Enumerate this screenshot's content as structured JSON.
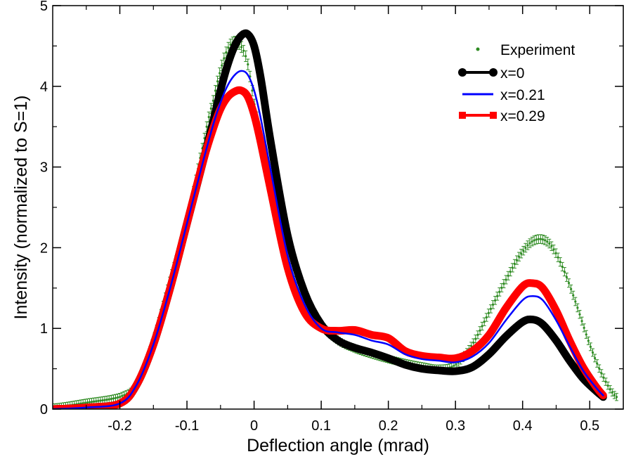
{
  "chart_data": {
    "type": "line",
    "title": "",
    "xlabel": "Deflection angle (mrad)",
    "ylabel": "Intensity (normalized to S=1)",
    "xlim": [
      -0.3,
      0.55
    ],
    "ylim": [
      0,
      5
    ],
    "x_ticks": [
      -0.2,
      -0.1,
      0,
      0.1,
      0.2,
      0.3,
      0.4,
      0.5
    ],
    "x_tick_labels": [
      "-0.2",
      "-0.1",
      "0",
      "0.1",
      "0.2",
      "0.3",
      "0.4",
      "0.5"
    ],
    "y_ticks": [
      0,
      1,
      2,
      3,
      4,
      5
    ],
    "y_tick_labels": [
      "0",
      "1",
      "2",
      "3",
      "4",
      "5"
    ],
    "grid": false,
    "legend_position": "top-right",
    "series": [
      {
        "name": "Experiment",
        "color": "#2e8b22",
        "style": "points-with-error-bars",
        "x": [
          -0.3,
          -0.25,
          -0.2,
          -0.175,
          -0.15,
          -0.125,
          -0.1,
          -0.075,
          -0.06,
          -0.05,
          -0.04,
          -0.03,
          -0.02,
          -0.01,
          0.0,
          0.01,
          0.025,
          0.05,
          0.075,
          0.1,
          0.125,
          0.15,
          0.175,
          0.2,
          0.225,
          0.25,
          0.275,
          0.3,
          0.325,
          0.35,
          0.375,
          0.4,
          0.42,
          0.44,
          0.46,
          0.48,
          0.5,
          0.52,
          0.54
        ],
        "y": [
          0.02,
          0.08,
          0.15,
          0.3,
          0.85,
          1.6,
          2.3,
          3.3,
          3.85,
          4.2,
          4.45,
          4.55,
          4.5,
          4.3,
          3.8,
          3.3,
          2.7,
          2.0,
          1.4,
          1.05,
          0.85,
          0.75,
          0.68,
          0.62,
          0.57,
          0.53,
          0.5,
          0.55,
          0.8,
          1.2,
          1.6,
          1.95,
          2.1,
          2.05,
          1.75,
          1.3,
          0.8,
          0.4,
          0.15
        ]
      },
      {
        "name": "x=0",
        "color": "#000000",
        "style": "thick-line-circles",
        "x": [
          -0.3,
          -0.25,
          -0.2,
          -0.175,
          -0.15,
          -0.125,
          -0.1,
          -0.075,
          -0.06,
          -0.05,
          -0.04,
          -0.03,
          -0.02,
          -0.01,
          0.0,
          0.01,
          0.025,
          0.05,
          0.075,
          0.1,
          0.125,
          0.15,
          0.175,
          0.2,
          0.225,
          0.25,
          0.275,
          0.3,
          0.325,
          0.35,
          0.375,
          0.4,
          0.415,
          0.43,
          0.45,
          0.47,
          0.49,
          0.51,
          0.52
        ],
        "y": [
          0.0,
          0.02,
          0.07,
          0.3,
          0.8,
          1.5,
          2.3,
          3.1,
          3.6,
          3.95,
          4.25,
          4.48,
          4.62,
          4.65,
          4.5,
          4.1,
          3.3,
          2.15,
          1.45,
          1.05,
          0.85,
          0.76,
          0.7,
          0.63,
          0.55,
          0.5,
          0.48,
          0.47,
          0.52,
          0.68,
          0.9,
          1.08,
          1.11,
          1.05,
          0.85,
          0.6,
          0.38,
          0.22,
          0.15
        ]
      },
      {
        "name": "x=0.21",
        "color": "#0000ff",
        "style": "thin-line",
        "x": [
          -0.3,
          -0.25,
          -0.2,
          -0.175,
          -0.15,
          -0.125,
          -0.1,
          -0.075,
          -0.06,
          -0.05,
          -0.04,
          -0.03,
          -0.02,
          -0.01,
          0.0,
          0.01,
          0.025,
          0.05,
          0.075,
          0.1,
          0.125,
          0.15,
          0.175,
          0.2,
          0.225,
          0.25,
          0.275,
          0.3,
          0.325,
          0.35,
          0.375,
          0.4,
          0.415,
          0.43,
          0.45,
          0.47,
          0.49,
          0.51,
          0.52
        ],
        "y": [
          0.0,
          0.02,
          0.07,
          0.3,
          0.8,
          1.5,
          2.3,
          3.1,
          3.55,
          3.8,
          4.0,
          4.13,
          4.19,
          4.15,
          3.95,
          3.6,
          2.95,
          1.9,
          1.3,
          1.0,
          0.95,
          0.92,
          0.85,
          0.8,
          0.68,
          0.62,
          0.6,
          0.58,
          0.65,
          0.82,
          1.1,
          1.35,
          1.4,
          1.35,
          1.1,
          0.78,
          0.48,
          0.26,
          0.17
        ]
      },
      {
        "name": "x=0.29",
        "color": "#ff0000",
        "style": "thick-line-squares",
        "x": [
          -0.3,
          -0.25,
          -0.2,
          -0.175,
          -0.15,
          -0.125,
          -0.1,
          -0.075,
          -0.06,
          -0.05,
          -0.04,
          -0.03,
          -0.02,
          -0.01,
          0.0,
          0.01,
          0.025,
          0.05,
          0.075,
          0.1,
          0.125,
          0.15,
          0.175,
          0.2,
          0.225,
          0.25,
          0.275,
          0.3,
          0.325,
          0.35,
          0.375,
          0.4,
          0.415,
          0.43,
          0.45,
          0.47,
          0.49,
          0.51,
          0.52
        ],
        "y": [
          0.0,
          0.02,
          0.07,
          0.3,
          0.8,
          1.5,
          2.3,
          3.1,
          3.5,
          3.72,
          3.86,
          3.93,
          3.95,
          3.88,
          3.65,
          3.3,
          2.7,
          1.75,
          1.2,
          1.0,
          0.97,
          0.98,
          0.92,
          0.88,
          0.72,
          0.66,
          0.64,
          0.63,
          0.72,
          0.92,
          1.25,
          1.52,
          1.56,
          1.5,
          1.22,
          0.85,
          0.52,
          0.27,
          0.17
        ]
      }
    ]
  }
}
